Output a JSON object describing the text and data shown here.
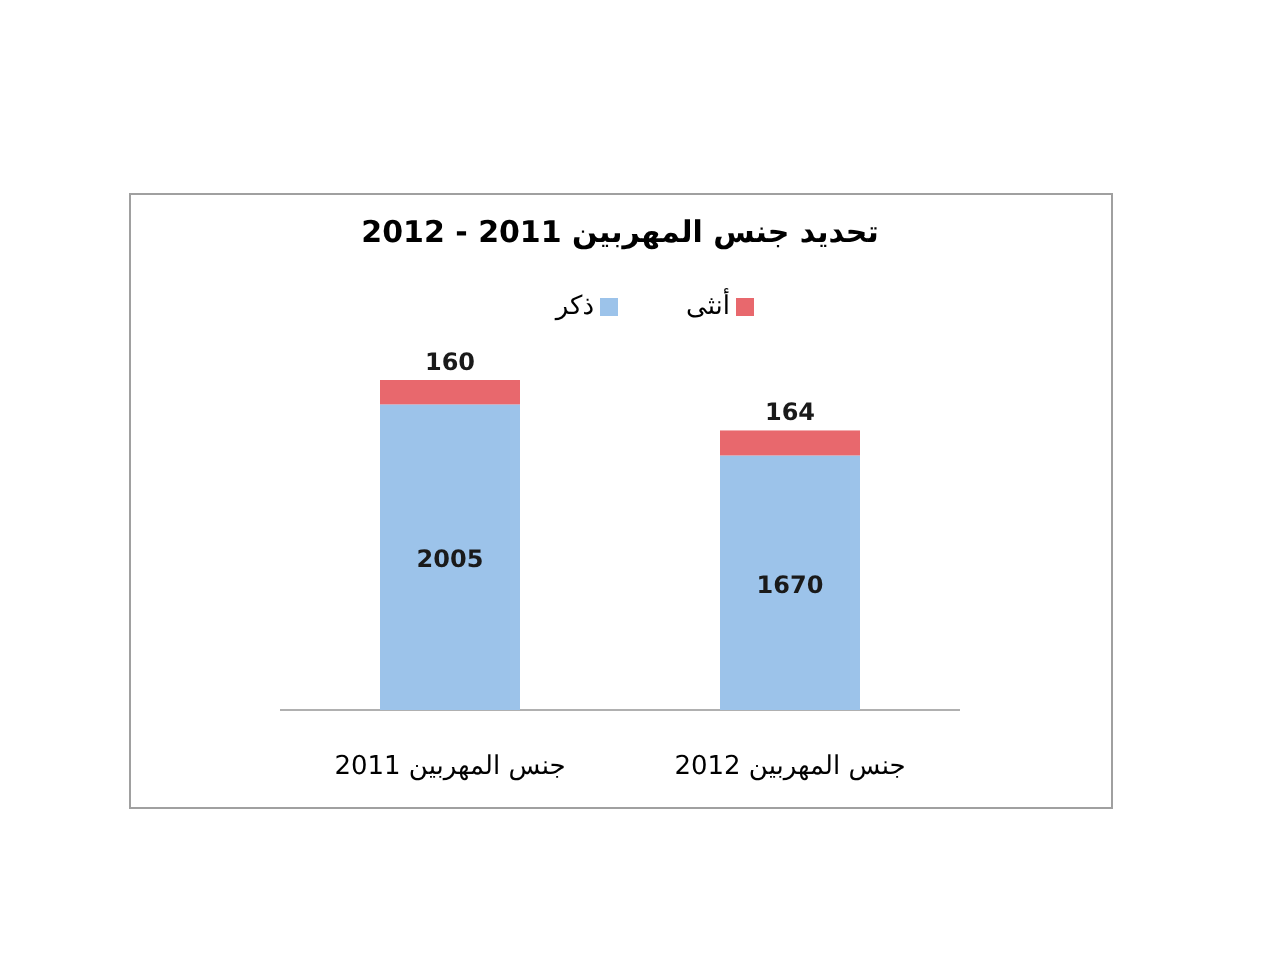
{
  "chart_data": {
    "type": "bar",
    "stacked": true,
    "data_labels": true,
    "legend": "top",
    "title": "تحديد جنس المهربين 2011 - 2012",
    "categories": [
      "جنس المهربين 2011",
      "جنس المهربين 2012"
    ],
    "series": [
      {
        "name": "ذكر",
        "color": "#9cc3ea",
        "values": [
          2005,
          1670
        ]
      },
      {
        "name": "أنثى",
        "color": "#e8686d",
        "values": [
          160,
          164
        ]
      }
    ]
  }
}
